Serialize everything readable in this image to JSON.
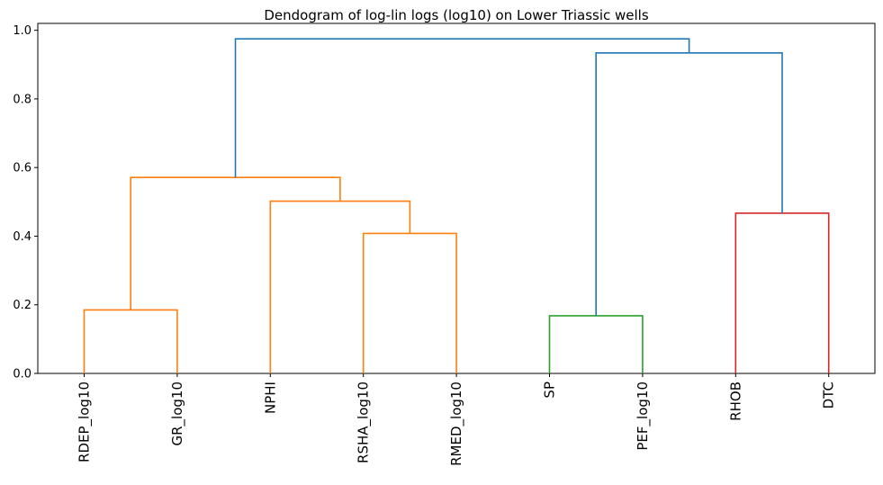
{
  "chart_data": {
    "type": "dendrogram",
    "title": "Dendogram of log-lin logs (log10) on Lower Triassic wells",
    "xlabel": "",
    "ylabel": "",
    "ylim": [
      0,
      1.02
    ],
    "yticks": [
      0.0,
      0.2,
      0.4,
      0.6,
      0.8,
      1.0
    ],
    "ytick_labels": [
      "0.0",
      "0.2",
      "0.4",
      "0.6",
      "0.8",
      "1.0"
    ],
    "leaves": [
      "RDEP_log10",
      "GR_log10",
      "NPHI",
      "RSHA_log10",
      "RMED_log10",
      "SP",
      "PEF_log10",
      "RHOB",
      "DTC"
    ],
    "merges": [
      {
        "id": "c1",
        "left": "RDEP_log10",
        "right": "GR_log10",
        "height": 0.185,
        "color": "#ff7f0e"
      },
      {
        "id": "c2",
        "left": "RSHA_log10",
        "right": "RMED_log10",
        "height": 0.408,
        "color": "#ff7f0e"
      },
      {
        "id": "c3",
        "left": "NPHI",
        "right": "c2",
        "height": 0.502,
        "color": "#ff7f0e"
      },
      {
        "id": "c4",
        "left": "c1",
        "right": "c3",
        "height": 0.571,
        "color": "#ff7f0e"
      },
      {
        "id": "c5",
        "left": "SP",
        "right": "PEF_log10",
        "height": 0.168,
        "color": "#2ca02c"
      },
      {
        "id": "c6",
        "left": "RHOB",
        "right": "DTC",
        "height": 0.467,
        "color": "#d62728"
      },
      {
        "id": "c7",
        "left": "c5",
        "right": "c6",
        "height": 0.934,
        "color": "#1f77b4"
      },
      {
        "id": "c8",
        "left": "c4",
        "right": "c7",
        "height": 0.975,
        "color": "#1f77b4"
      }
    ]
  }
}
